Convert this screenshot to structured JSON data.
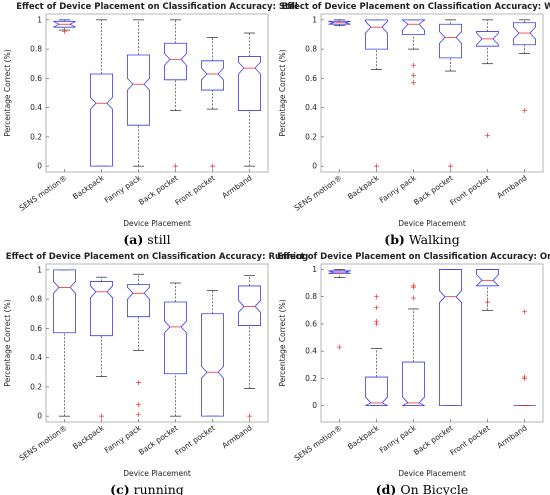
{
  "chart_data": [
    {
      "type": "box",
      "title": "Effect of Device Placement on Classification Accuracy: Still",
      "xlabel": "Device Placement",
      "ylabel": "Percentage Correct (%)",
      "caption_label": "(a)",
      "caption_text": "still",
      "categories": [
        "SENS motion®",
        "Backpack",
        "Fanny pack",
        "Back pocket",
        "Front pocket",
        "Armband"
      ],
      "boxes": [
        {
          "whislo": 0.93,
          "q1": 0.95,
          "med": 0.97,
          "q3": 0.99,
          "whishi": 1.0,
          "fliers": [
            0.92
          ]
        },
        {
          "whislo": 0,
          "q1": 0,
          "med": 0.43,
          "q3": 0.63,
          "whishi": 1.0,
          "fliers": []
        },
        {
          "whislo": 0,
          "q1": 0.28,
          "med": 0.56,
          "q3": 0.76,
          "whishi": 1.0,
          "fliers": []
        },
        {
          "whislo": 0.38,
          "q1": 0.59,
          "med": 0.73,
          "q3": 0.84,
          "whishi": 1.0,
          "fliers": [
            0
          ]
        },
        {
          "whislo": 0.39,
          "q1": 0.52,
          "med": 0.63,
          "q3": 0.72,
          "whishi": 0.88,
          "fliers": [
            0
          ]
        },
        {
          "whislo": 0,
          "q1": 0.38,
          "med": 0.67,
          "q3": 0.75,
          "whishi": 0.91,
          "fliers": []
        }
      ],
      "ylim": [
        -0.04,
        1.04
      ],
      "yticks": [
        0,
        0.2,
        0.4,
        0.6,
        0.8,
        1
      ],
      "box_color": "#3b3bf5",
      "median_color": "#f03030",
      "flier_color": "#f03030"
    },
    {
      "type": "box",
      "title": "Effect of Device Placement on Classification Accuracy: Walking",
      "xlabel": "Device Placement",
      "ylabel": "Percentage Correct (%)",
      "caption_label": "(b)",
      "caption_text": "Walking",
      "categories": [
        "SENS motion®",
        "Backpack",
        "Fanny pack",
        "Back pocket",
        "Front pocket",
        "Armband"
      ],
      "boxes": [
        {
          "whislo": 0.96,
          "q1": 0.97,
          "med": 0.98,
          "q3": 0.99,
          "whishi": 1.0,
          "fliers": []
        },
        {
          "whislo": 0.66,
          "q1": 0.8,
          "med": 0.95,
          "q3": 1.0,
          "whishi": 1.0,
          "fliers": [
            0
          ]
        },
        {
          "whislo": 0.8,
          "q1": 0.9,
          "med": 0.97,
          "q3": 1.0,
          "whishi": 1.0,
          "fliers": [
            0.69,
            0.62,
            0.57
          ]
        },
        {
          "whislo": 0.65,
          "q1": 0.74,
          "med": 0.88,
          "q3": 0.97,
          "whishi": 1.0,
          "fliers": [
            0
          ]
        },
        {
          "whislo": 0.7,
          "q1": 0.82,
          "med": 0.87,
          "q3": 0.92,
          "whishi": 1.0,
          "fliers": [
            0.21
          ]
        },
        {
          "whislo": 0.77,
          "q1": 0.83,
          "med": 0.91,
          "q3": 0.98,
          "whishi": 1.0,
          "fliers": [
            0.38
          ]
        }
      ],
      "ylim": [
        -0.04,
        1.04
      ],
      "yticks": [
        0,
        0.2,
        0.4,
        0.6,
        0.8,
        1
      ],
      "box_color": "#3b3bf5",
      "median_color": "#f03030",
      "flier_color": "#f03030"
    },
    {
      "type": "box",
      "title": "Effect of Device Placement on Classification Accuracy: Running",
      "xlabel": "Device Placement",
      "ylabel": "Percentage Correct (%)",
      "caption_label": "(c)",
      "caption_text": "running",
      "categories": [
        "SENS motion®",
        "Backpack",
        "Fanny pack",
        "Back pocket",
        "Front pocket",
        "Armband"
      ],
      "boxes": [
        {
          "whislo": 0,
          "q1": 0.57,
          "med": 0.88,
          "q3": 1.0,
          "whishi": 1.0,
          "fliers": []
        },
        {
          "whislo": 0.27,
          "q1": 0.55,
          "med": 0.85,
          "q3": 0.92,
          "whishi": 0.95,
          "fliers": [
            0
          ]
        },
        {
          "whislo": 0.45,
          "q1": 0.68,
          "med": 0.84,
          "q3": 0.9,
          "whishi": 0.97,
          "fliers": [
            0.23,
            0.08,
            0.01
          ]
        },
        {
          "whislo": 0,
          "q1": 0.29,
          "med": 0.61,
          "q3": 0.78,
          "whishi": 0.91,
          "fliers": []
        },
        {
          "whislo": 0,
          "q1": 0,
          "med": 0.3,
          "q3": 0.7,
          "whishi": 0.86,
          "fliers": []
        },
        {
          "whislo": 0.19,
          "q1": 0.62,
          "med": 0.75,
          "q3": 0.89,
          "whishi": 0.96,
          "fliers": [
            0
          ]
        }
      ],
      "ylim": [
        -0.04,
        1.04
      ],
      "yticks": [
        0,
        0.2,
        0.4,
        0.6,
        0.8,
        1
      ],
      "box_color": "#3b3bf5",
      "median_color": "#f03030",
      "flier_color": "#f03030"
    },
    {
      "type": "box",
      "title": "Effect of Device Placement on Classification Accuracy: OnBicycle",
      "xlabel": "Device Placement",
      "ylabel": "Percentage Correct (%)",
      "caption_label": "(d)",
      "caption_text": "On Bicycle",
      "categories": [
        "SENS motion®",
        "Backpack",
        "Fanny pack",
        "Back pocket",
        "Front pocket",
        "Armband"
      ],
      "boxes": [
        {
          "whislo": 0.94,
          "q1": 0.97,
          "med": 0.98,
          "q3": 0.99,
          "whishi": 1.0,
          "fliers": [
            0.43
          ]
        },
        {
          "whislo": 0,
          "q1": 0,
          "med": 0.02,
          "q3": 0.21,
          "whishi": 0.42,
          "fliers": [
            0.6,
            0.62,
            0.72,
            0.8
          ]
        },
        {
          "whislo": 0,
          "q1": 0,
          "med": 0.02,
          "q3": 0.32,
          "whishi": 0.71,
          "fliers": [
            0.79,
            0.87,
            0.88
          ]
        },
        {
          "whislo": 0,
          "q1": 0,
          "med": 0.8,
          "q3": 1.0,
          "whishi": 1.0,
          "fliers": []
        },
        {
          "whislo": 0.7,
          "q1": 0.88,
          "med": 0.92,
          "q3": 1.0,
          "whishi": 1.0,
          "fliers": [
            0.76
          ]
        },
        {
          "whislo": 0,
          "q1": 0,
          "med": 0,
          "q3": 0,
          "whishi": 0,
          "fliers": [
            0.69,
            0.21,
            0.2
          ]
        }
      ],
      "ylim": [
        -0.12,
        1.04
      ],
      "yticks": [
        0,
        0.2,
        0.4,
        0.6,
        0.8,
        1
      ],
      "box_color": "#3b3bf5",
      "median_color": "#f03030",
      "flier_color": "#f03030"
    }
  ]
}
